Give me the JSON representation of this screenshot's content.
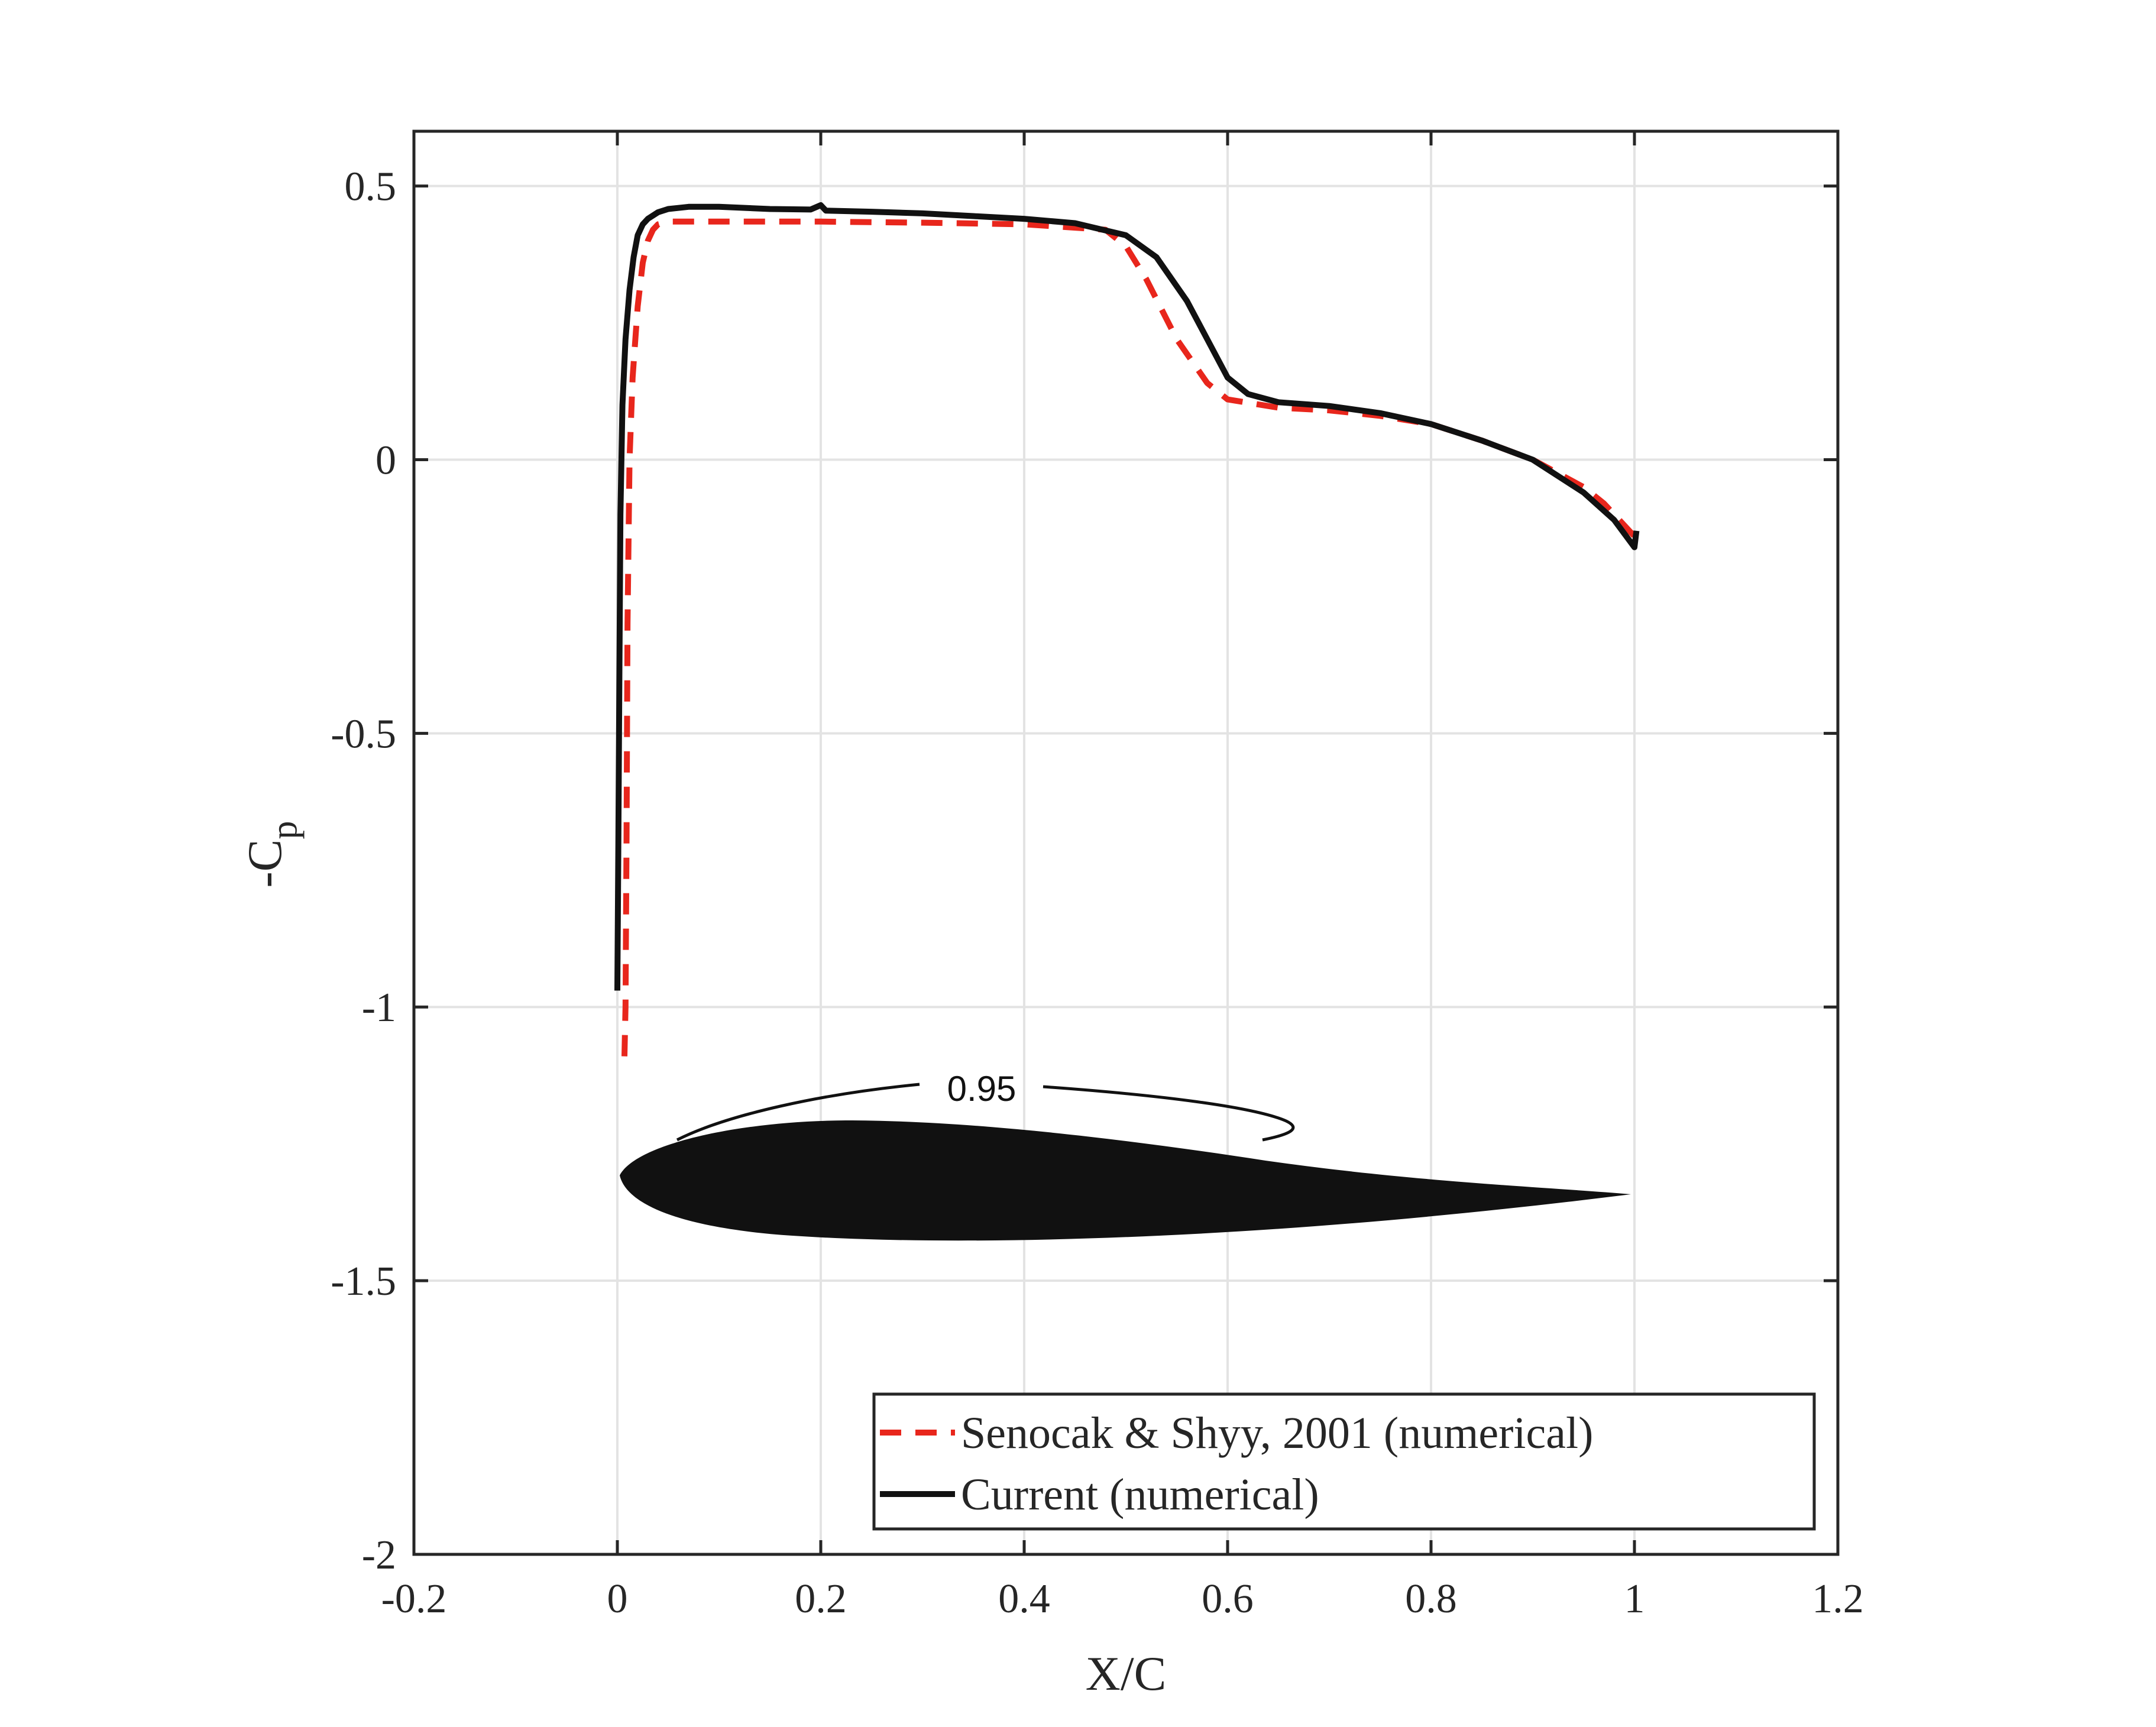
{
  "chart_data": {
    "type": "line",
    "xlabel": "X/C",
    "ylabel": "-C",
    "ylabel_subscript": "p",
    "xlim": [
      -0.2,
      1.2
    ],
    "ylim": [
      -2,
      0.6
    ],
    "x_ticks": [
      -0.2,
      0,
      0.2,
      0.4,
      0.6,
      0.8,
      1,
      1.2
    ],
    "y_ticks": [
      -2,
      -1.5,
      -1,
      -0.5,
      0,
      0.5
    ],
    "x_tick_labels": [
      "-0.2",
      "0",
      "0.2",
      "0.4",
      "0.6",
      "0.8",
      "1",
      "1.2"
    ],
    "y_tick_labels": [
      "-2",
      "-1.5",
      "-1",
      "-0.5",
      "0",
      "0.5"
    ],
    "grid": true,
    "legend_position": "bottom-right",
    "series": [
      {
        "name": "Senocak & Shyy, 2001 (numerical)",
        "color": "#e8261c",
        "style": "dashed",
        "x": [
          0.007,
          0.008,
          0.009,
          0.01,
          0.012,
          0.015,
          0.02,
          0.025,
          0.03,
          0.035,
          0.04,
          0.05,
          0.07,
          0.1,
          0.2,
          0.3,
          0.4,
          0.48,
          0.5,
          0.52,
          0.55,
          0.58,
          0.6,
          0.65,
          0.7,
          0.75,
          0.8,
          0.85,
          0.9,
          0.95,
          0.97,
          1.0
        ],
        "y": [
          -1.09,
          -1.0,
          -0.7,
          -0.3,
          0.0,
          0.15,
          0.28,
          0.36,
          0.4,
          0.42,
          0.43,
          0.435,
          0.435,
          0.435,
          0.435,
          0.433,
          0.43,
          0.42,
          0.39,
          0.33,
          0.22,
          0.14,
          0.11,
          0.095,
          0.09,
          0.08,
          0.065,
          0.035,
          0.0,
          -0.05,
          -0.08,
          -0.14
        ]
      },
      {
        "name": "Current (numerical)",
        "color": "#111111",
        "style": "solid",
        "x": [
          0.0,
          0.001,
          0.002,
          0.003,
          0.005,
          0.008,
          0.012,
          0.016,
          0.02,
          0.025,
          0.03,
          0.04,
          0.05,
          0.07,
          0.1,
          0.15,
          0.19,
          0.2,
          0.205,
          0.25,
          0.3,
          0.35,
          0.4,
          0.45,
          0.5,
          0.53,
          0.56,
          0.58,
          0.6,
          0.62,
          0.65,
          0.7,
          0.75,
          0.8,
          0.85,
          0.9,
          0.95,
          0.98,
          1.0,
          1.002
        ],
        "y": [
          -0.97,
          -0.7,
          -0.4,
          -0.1,
          0.1,
          0.22,
          0.31,
          0.37,
          0.41,
          0.43,
          0.44,
          0.452,
          0.458,
          0.462,
          0.462,
          0.458,
          0.457,
          0.465,
          0.455,
          0.453,
          0.45,
          0.445,
          0.44,
          0.432,
          0.41,
          0.37,
          0.29,
          0.22,
          0.15,
          0.12,
          0.105,
          0.098,
          0.085,
          0.065,
          0.035,
          0.0,
          -0.06,
          -0.11,
          -0.16,
          -0.13
        ]
      }
    ],
    "annotations": [
      {
        "text": "0.95",
        "kind": "contour-label"
      }
    ],
    "inset": {
      "kind": "airfoil-silhouette",
      "color": "#111111"
    }
  }
}
